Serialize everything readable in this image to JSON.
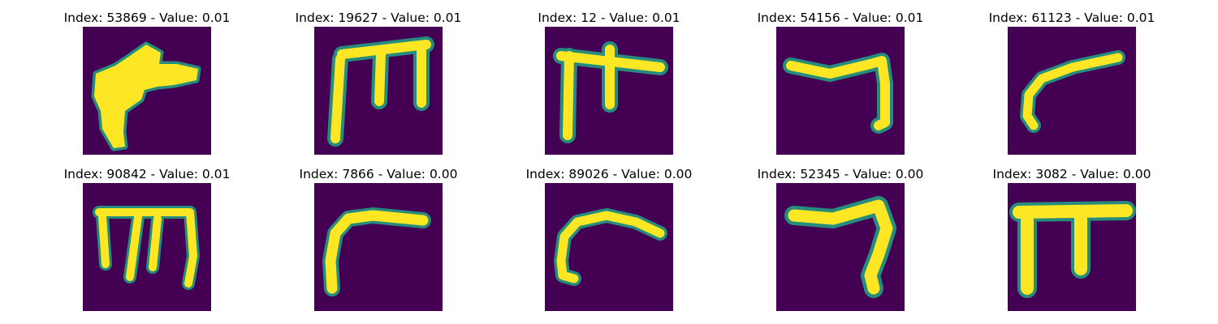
{
  "grid": {
    "panels": [
      {
        "title": "Index: 53869 - Value: 0.01"
      },
      {
        "title": "Index: 19627 - Value: 0.01"
      },
      {
        "title": "Index: 12 - Value: 0.01"
      },
      {
        "title": "Index: 54156 - Value: 0.01"
      },
      {
        "title": "Index: 61123 - Value: 0.01"
      },
      {
        "title": "Index: 90842 - Value: 0.01"
      },
      {
        "title": "Index: 7866 - Value: 0.00"
      },
      {
        "title": "Index: 89026 - Value: 0.00"
      },
      {
        "title": "Index: 52345 - Value: 0.00"
      },
      {
        "title": "Index: 3082 - Value: 0.00"
      }
    ]
  },
  "colors": {
    "background": "#440154",
    "foreground": "#fde725",
    "edge": "#21a585"
  }
}
